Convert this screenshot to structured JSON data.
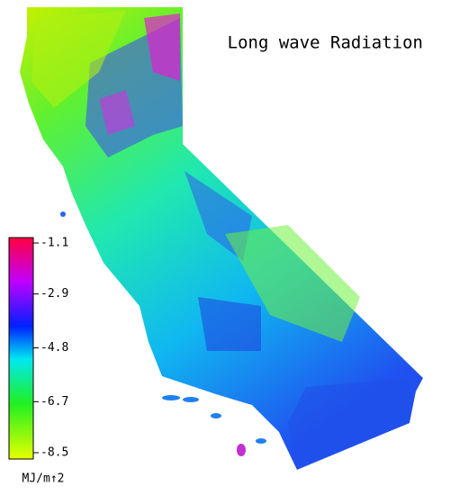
{
  "title": "Long wave Radiation",
  "colorbar": {
    "lim": [
      -8.5,
      -1.1
    ],
    "ticks": [
      -1.1,
      -2.9,
      -4.8,
      -6.7,
      -8.5
    ],
    "unit": "MJ/m↑2"
  }
}
